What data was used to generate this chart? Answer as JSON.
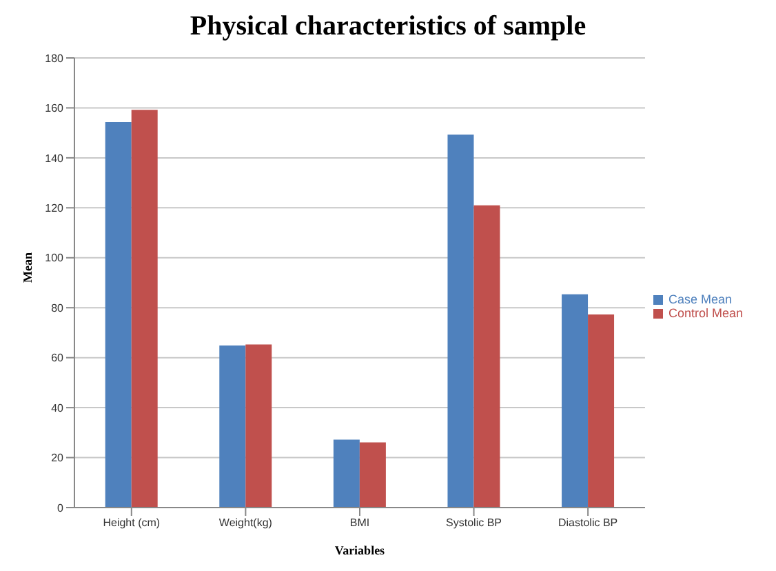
{
  "chart_data": {
    "type": "bar",
    "title": "Physical characteristics of sample",
    "xlabel": "Variables",
    "ylabel": "Mean",
    "categories": [
      "Height (cm)",
      "Weight(kg)",
      "BMI",
      "Systolic BP",
      "Diastolic BP"
    ],
    "series": [
      {
        "name": "Case Mean",
        "color": "#4f81bd",
        "values": [
          154.3,
          64.9,
          27.2,
          149.3,
          85.4
        ]
      },
      {
        "name": "Control Mean",
        "color": "#c0504d",
        "values": [
          159.2,
          65.3,
          26.1,
          121.0,
          77.3
        ]
      }
    ],
    "ylim": [
      0,
      180
    ],
    "yticks": [
      0,
      20,
      40,
      60,
      80,
      100,
      120,
      140,
      160,
      180
    ],
    "grid": "y",
    "legend": "right"
  }
}
